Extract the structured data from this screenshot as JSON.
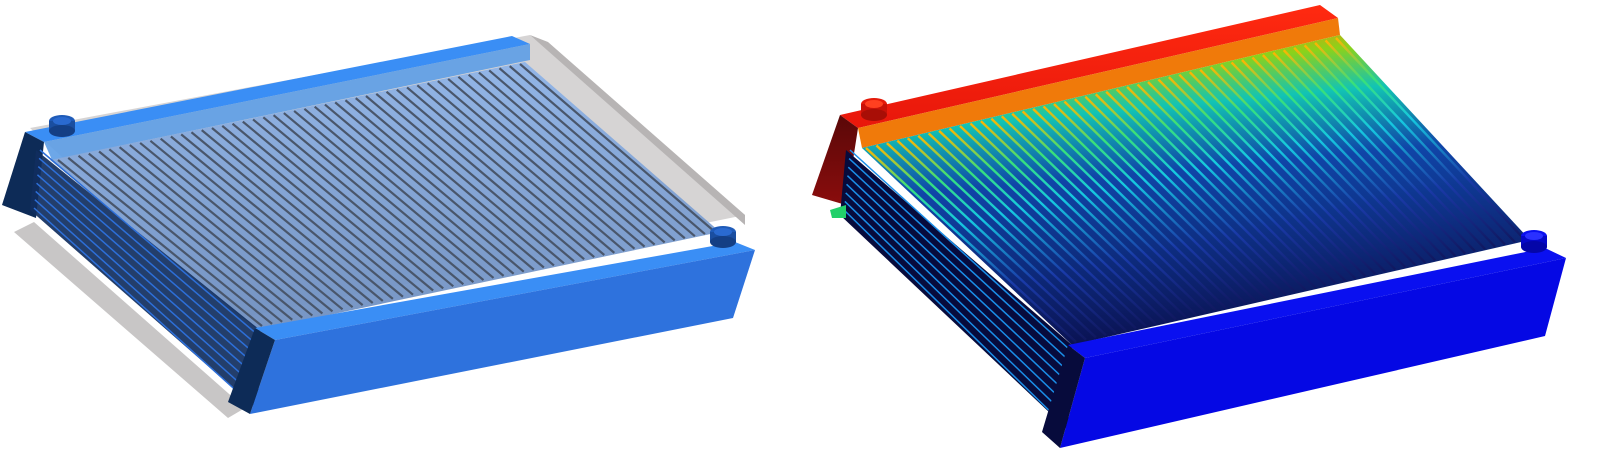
{
  "scene": {
    "panels": [
      {
        "id": "left",
        "render_style": "transparent-housing",
        "colors": {
          "housing": "#bdbdbd",
          "block_light": "#3a8ef5",
          "block_dark": "#0d2b57",
          "block_front": "#2e72dd",
          "fins": "#5a6a80"
        }
      },
      {
        "id": "right",
        "render_style": "temperature-contour",
        "colors": {
          "hot": "#e8170b",
          "warm": "#f39a0a",
          "mid": "#19d05a",
          "cool": "#1aa9d6",
          "cold": "#0508e4",
          "dark": "#070b3c"
        }
      }
    ],
    "fin_count": 46
  }
}
